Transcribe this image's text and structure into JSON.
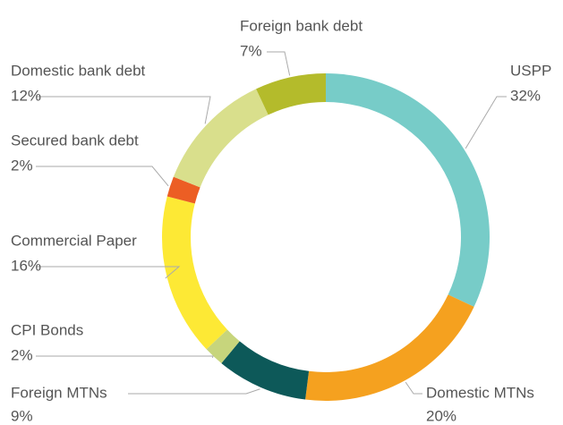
{
  "chart_data": {
    "type": "donut",
    "categories": [
      "USPP",
      "Domestic MTNs",
      "Foreign MTNs",
      "CPI Bonds",
      "Commercial Paper",
      "Secured bank debt",
      "Domestic bank debt",
      "Foreign bank debt"
    ],
    "values": [
      32,
      20,
      9,
      2,
      16,
      2,
      12,
      7
    ],
    "value_labels": [
      "32%",
      "20%",
      "9%",
      "2%",
      "16%",
      "2%",
      "12%",
      "7%"
    ],
    "colors": [
      "#77ccc8",
      "#f5a11f",
      "#0d5959",
      "#c7d57c",
      "#fde935",
      "#ec5e24",
      "#d9df8c",
      "#b4bb2b"
    ]
  }
}
